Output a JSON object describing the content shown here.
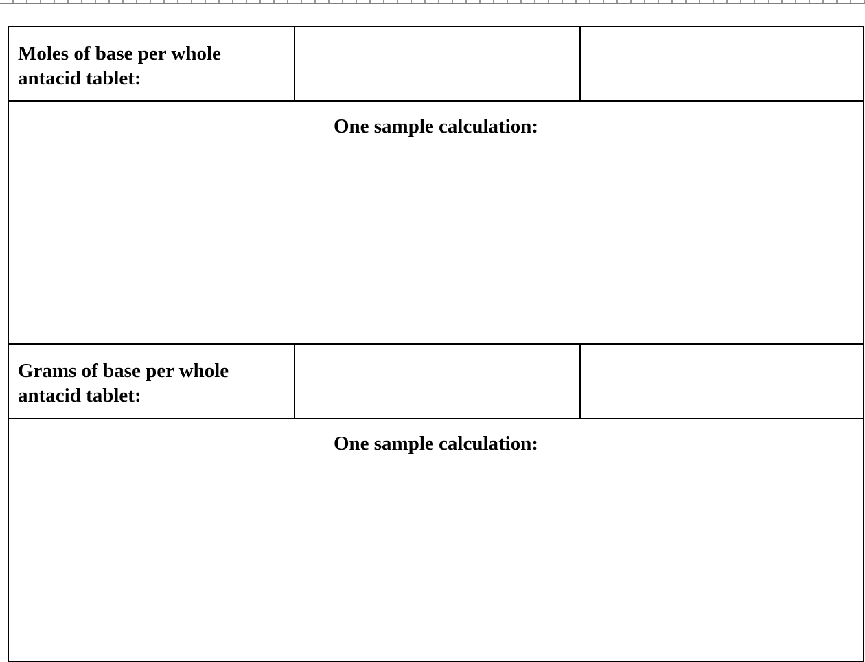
{
  "table": {
    "row1_label": "Moles of base per whole antacid tablet:",
    "row2_label": "Grams of base per whole antacid tablet:",
    "calc_label": "One sample calculation:"
  }
}
